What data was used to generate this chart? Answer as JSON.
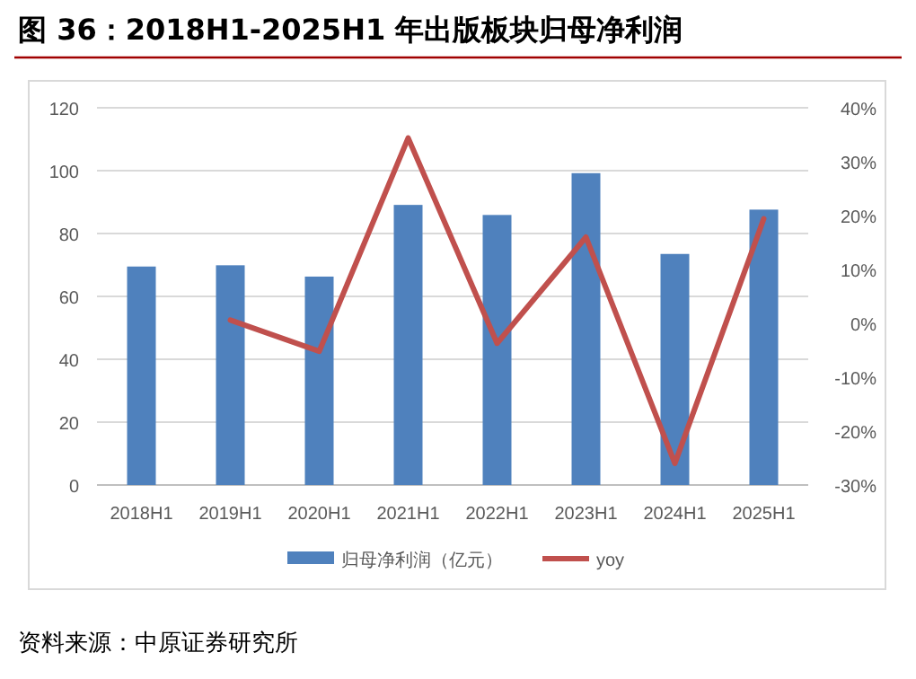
{
  "chart_data": {
    "type": "bar",
    "title": "图 36：2018H1-2025H1 年出版板块归母净利润",
    "categories": [
      "2018H1",
      "2019H1",
      "2020H1",
      "2021H1",
      "2022H1",
      "2023H1",
      "2024H1",
      "2025H1"
    ],
    "series": [
      {
        "name": "归母净利润（亿元）",
        "color": "#4f81bd",
        "values": [
          69.5,
          69.9,
          66.3,
          89.1,
          85.9,
          99.2,
          73.5,
          87.6
        ]
      },
      {
        "name": "yoy",
        "type": "line",
        "axis": "y2",
        "color": "#c0504d",
        "values": [
          null,
          0.6,
          -5.2,
          34.4,
          -3.7,
          16,
          -26,
          19.4
        ]
      }
    ],
    "ylim": [
      0,
      120
    ],
    "yticks": [
      0,
      20,
      40,
      60,
      80,
      100,
      120
    ],
    "y2lim": [
      -30,
      40
    ],
    "y2ticks": [
      {
        "value": -30,
        "label": "-30%"
      },
      {
        "value": -20,
        "label": "-20%"
      },
      {
        "value": -10,
        "label": "-10%"
      },
      {
        "value": 0,
        "label": "0%"
      },
      {
        "value": 10,
        "label": "10%"
      },
      {
        "value": 20,
        "label": "20%"
      },
      {
        "value": 30,
        "label": "30%"
      },
      {
        "value": 40,
        "label": "40%"
      }
    ],
    "grid": "y",
    "legend": "bottom",
    "annotations": [
      "资料来源：中原证券研究所"
    ]
  }
}
